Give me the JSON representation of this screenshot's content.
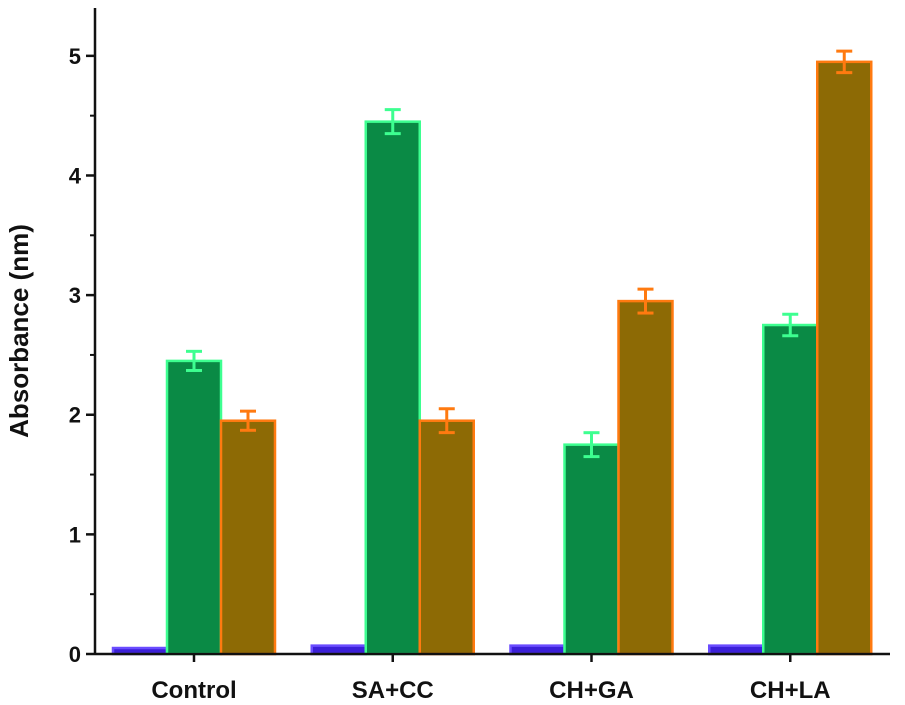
{
  "chart_data": {
    "type": "bar",
    "title": "",
    "xlabel": "",
    "ylabel": "Absorbance (nm)",
    "ylim": [
      0,
      5.4
    ],
    "yticks": [
      0,
      1,
      2,
      3,
      4,
      5
    ],
    "grid": false,
    "categories": [
      "Control",
      "SA+CC",
      "CH+GA",
      "CH+LA"
    ],
    "series": [
      {
        "values": [
          0.05,
          0.07,
          0.07,
          0.07
        ],
        "errors": [
          0,
          0,
          0,
          0
        ],
        "color": "#3b1fd8",
        "edge": "#6a4cff"
      },
      {
        "values": [
          2.45,
          4.45,
          1.75,
          2.75
        ],
        "errors": [
          0.08,
          0.1,
          0.1,
          0.09
        ],
        "color": "#0a8a45",
        "edge": "#3dff90"
      },
      {
        "values": [
          1.95,
          1.95,
          2.95,
          4.95
        ],
        "errors": [
          0.08,
          0.1,
          0.1,
          0.09
        ],
        "color": "#8d6a05",
        "edge": "#ff7a10"
      }
    ]
  }
}
